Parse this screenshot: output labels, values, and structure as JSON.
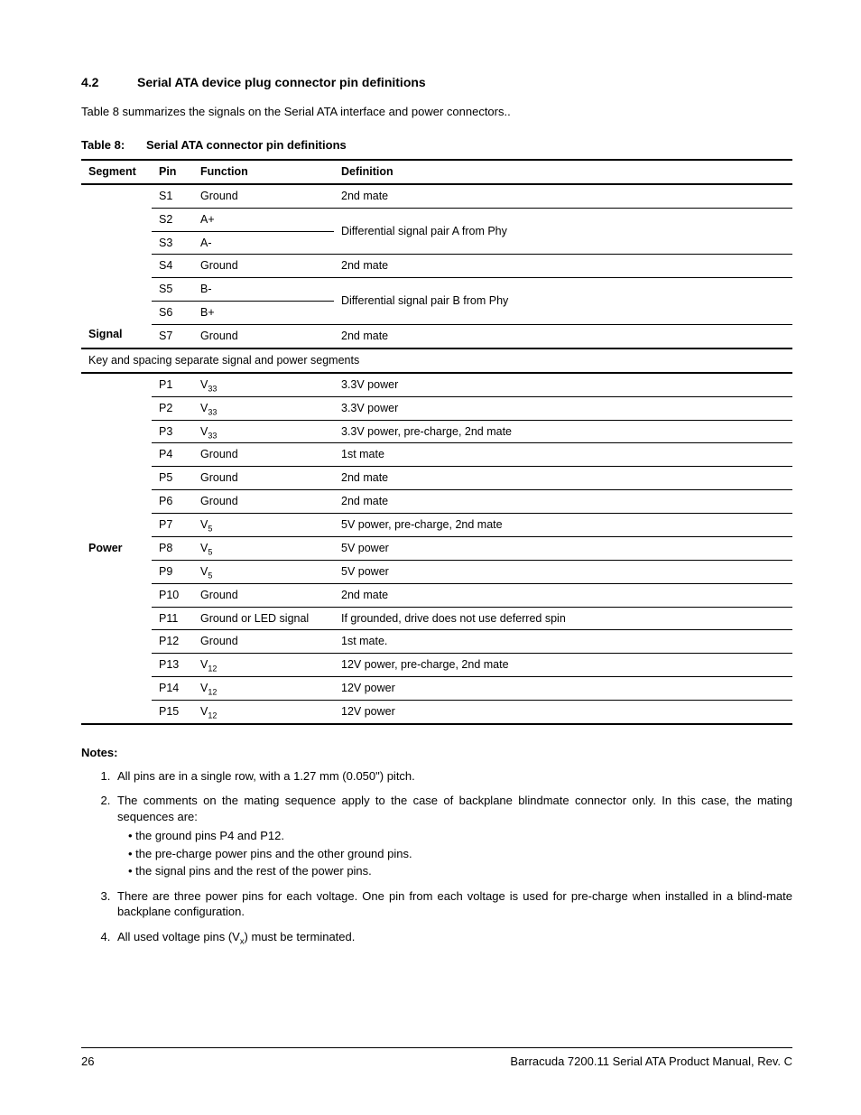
{
  "section": {
    "number": "4.2",
    "title": "Serial ATA device plug connector pin definitions"
  },
  "intro": "Table 8 summarizes the signals on the Serial ATA interface and power connectors..",
  "tableCaption": {
    "label": "Table 8:",
    "title": "Serial ATA connector pin definitions"
  },
  "headers": {
    "segment": "Segment",
    "pin": "Pin",
    "function": "Function",
    "definition": "Definition"
  },
  "signalSegment": "Signal",
  "signalRows": [
    {
      "pin": "S1",
      "fn": "Ground",
      "def": "2nd mate"
    },
    {
      "pin": "S2",
      "fn": "A+",
      "def": "Differential signal pair A from Phy"
    },
    {
      "pin": "S3",
      "fn": "A-",
      "def": ""
    },
    {
      "pin": "S4",
      "fn": "Ground",
      "def": "2nd mate"
    },
    {
      "pin": "S5",
      "fn": "B-",
      "def": "Differential signal pair B from Phy"
    },
    {
      "pin": "S6",
      "fn": "B+",
      "def": ""
    },
    {
      "pin": "S7",
      "fn": "Ground",
      "def": "2nd mate"
    }
  ],
  "separator": "Key and spacing separate signal and power segments",
  "powerSegment": "Power",
  "powerRows": [
    {
      "pin": "P1",
      "fnHtml": "V<sub>33</sub>",
      "def": "3.3V power"
    },
    {
      "pin": "P2",
      "fnHtml": "V<sub>33</sub>",
      "def": "3.3V power"
    },
    {
      "pin": "P3",
      "fnHtml": "V<sub>33</sub>",
      "def": "3.3V power, pre-charge, 2nd mate"
    },
    {
      "pin": "P4",
      "fnHtml": "Ground",
      "def": "1st mate"
    },
    {
      "pin": "P5",
      "fnHtml": "Ground",
      "def": "2nd mate"
    },
    {
      "pin": "P6",
      "fnHtml": "Ground",
      "def": "2nd mate"
    },
    {
      "pin": "P7",
      "fnHtml": "V<sub>5</sub>",
      "def": "5V power, pre-charge, 2nd mate"
    },
    {
      "pin": "P8",
      "fnHtml": "V<sub>5</sub>",
      "def": "5V power"
    },
    {
      "pin": "P9",
      "fnHtml": "V<sub>5</sub>",
      "def": "5V power"
    },
    {
      "pin": "P10",
      "fnHtml": "Ground",
      "def": "2nd mate"
    },
    {
      "pin": "P11",
      "fnHtml": "Ground or LED signal",
      "def": "If grounded, drive does not use deferred spin"
    },
    {
      "pin": "P12",
      "fnHtml": "Ground",
      "def": "1st mate."
    },
    {
      "pin": "P13",
      "fnHtml": "V<sub>12</sub>",
      "def": "12V power, pre-charge, 2nd mate"
    },
    {
      "pin": "P14",
      "fnHtml": "V<sub>12</sub>",
      "def": "12V power"
    },
    {
      "pin": "P15",
      "fnHtml": "V<sub>12</sub>",
      "def": "12V power"
    }
  ],
  "notesHeading": "Notes:",
  "notes": {
    "n1": "All pins are in a single row, with a 1.27 mm (0.050\") pitch.",
    "n2": "The comments on the mating sequence apply to the case of backplane blindmate connector only. In this case, the mating sequences are:",
    "n2sub": [
      "the ground pins P4 and P12.",
      "the pre-charge power pins and the other ground pins.",
      "the signal pins and the rest of the power pins."
    ],
    "n3": "There are three power pins for each voltage. One pin from each voltage is used for pre-charge when installed in a blind-mate backplane configuration.",
    "n4Html": "All used voltage pins (V<sub>x</sub>) must be terminated."
  },
  "footer": {
    "page": "26",
    "doc": "Barracuda 7200.11 Serial ATA Product Manual, Rev. C"
  }
}
